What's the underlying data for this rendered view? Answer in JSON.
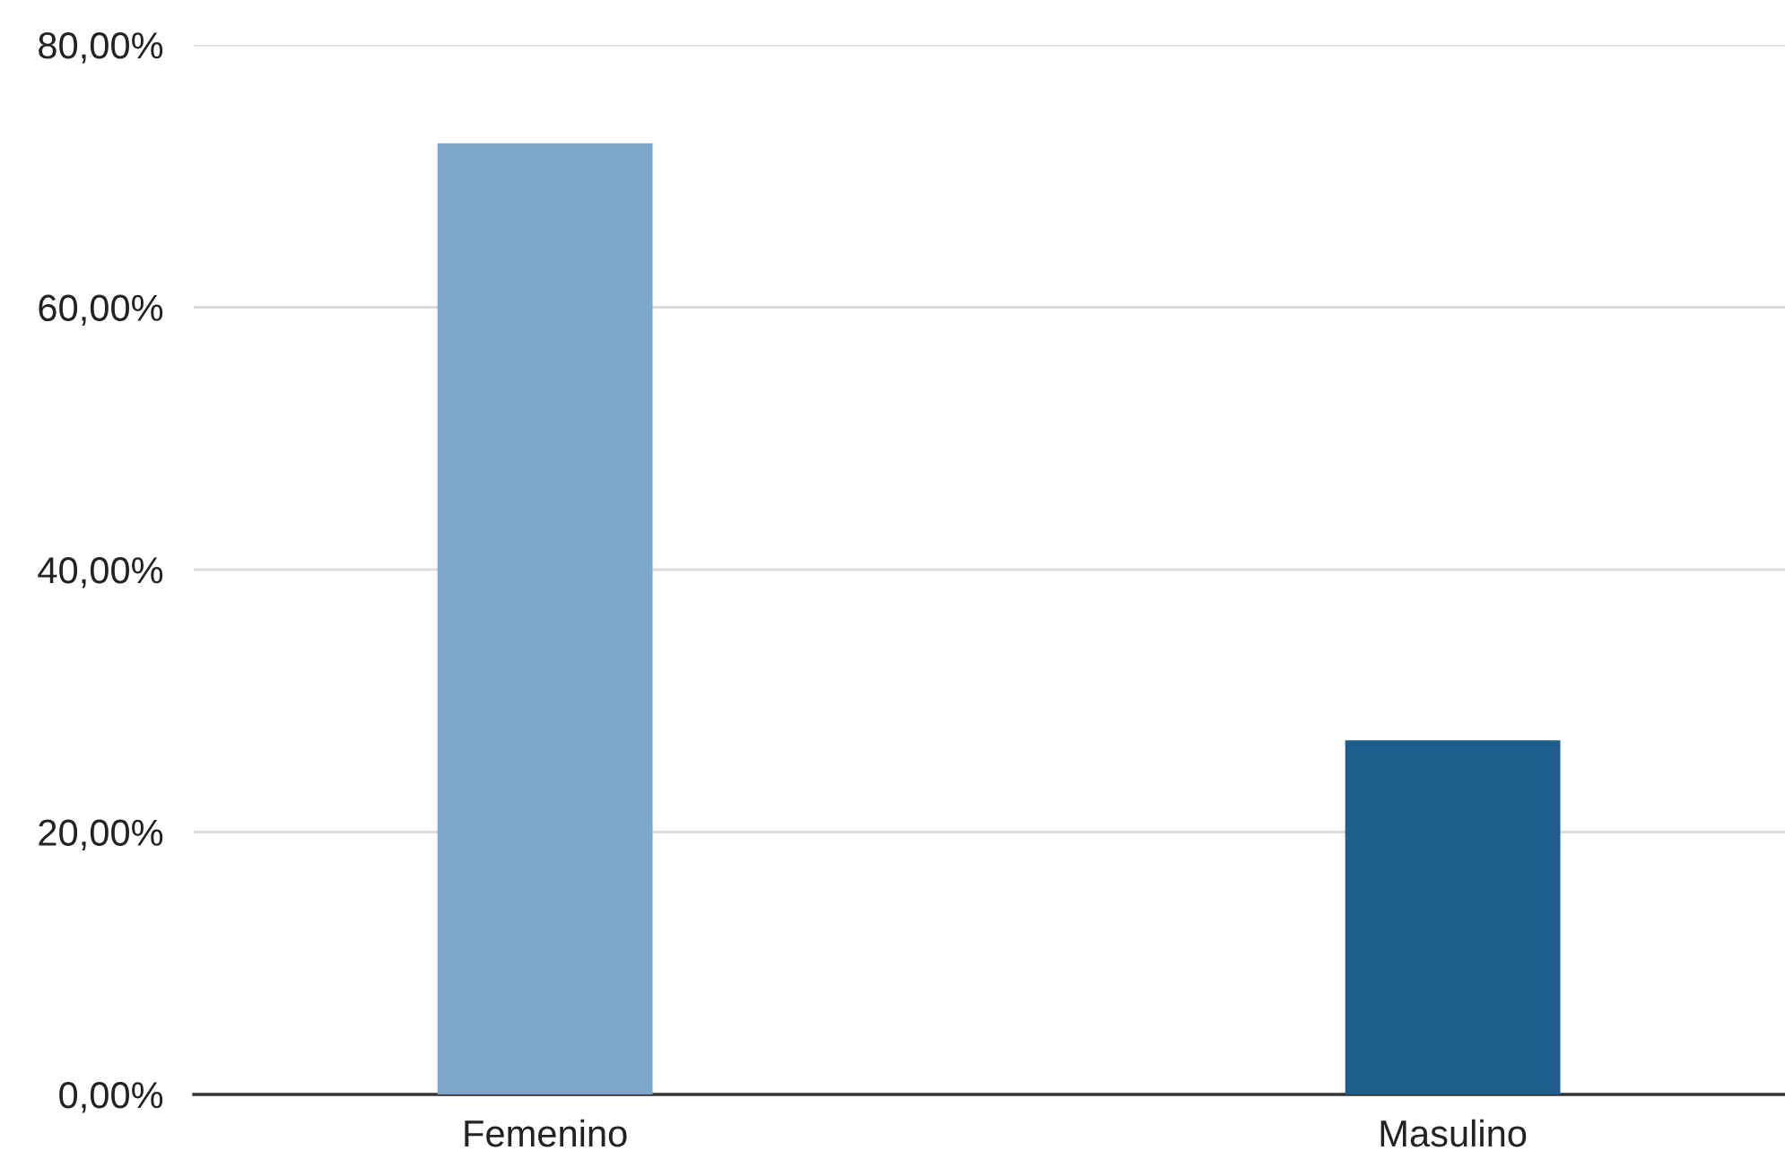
{
  "chart_data": {
    "type": "bar",
    "categories": [
      "Femenino",
      "Masulino"
    ],
    "values": [
      72.5,
      27.0
    ],
    "colors": [
      "#7ea6c9",
      "#1d5e8c"
    ],
    "ylim": [
      0,
      80
    ],
    "yticks": [
      {
        "value": 0,
        "label": "0,00%"
      },
      {
        "value": 20,
        "label": "20,00%"
      },
      {
        "value": 40,
        "label": "40,00%"
      },
      {
        "value": 60,
        "label": "60,00%"
      },
      {
        "value": 80,
        "label": "80,00%"
      }
    ],
    "grid": "y"
  }
}
